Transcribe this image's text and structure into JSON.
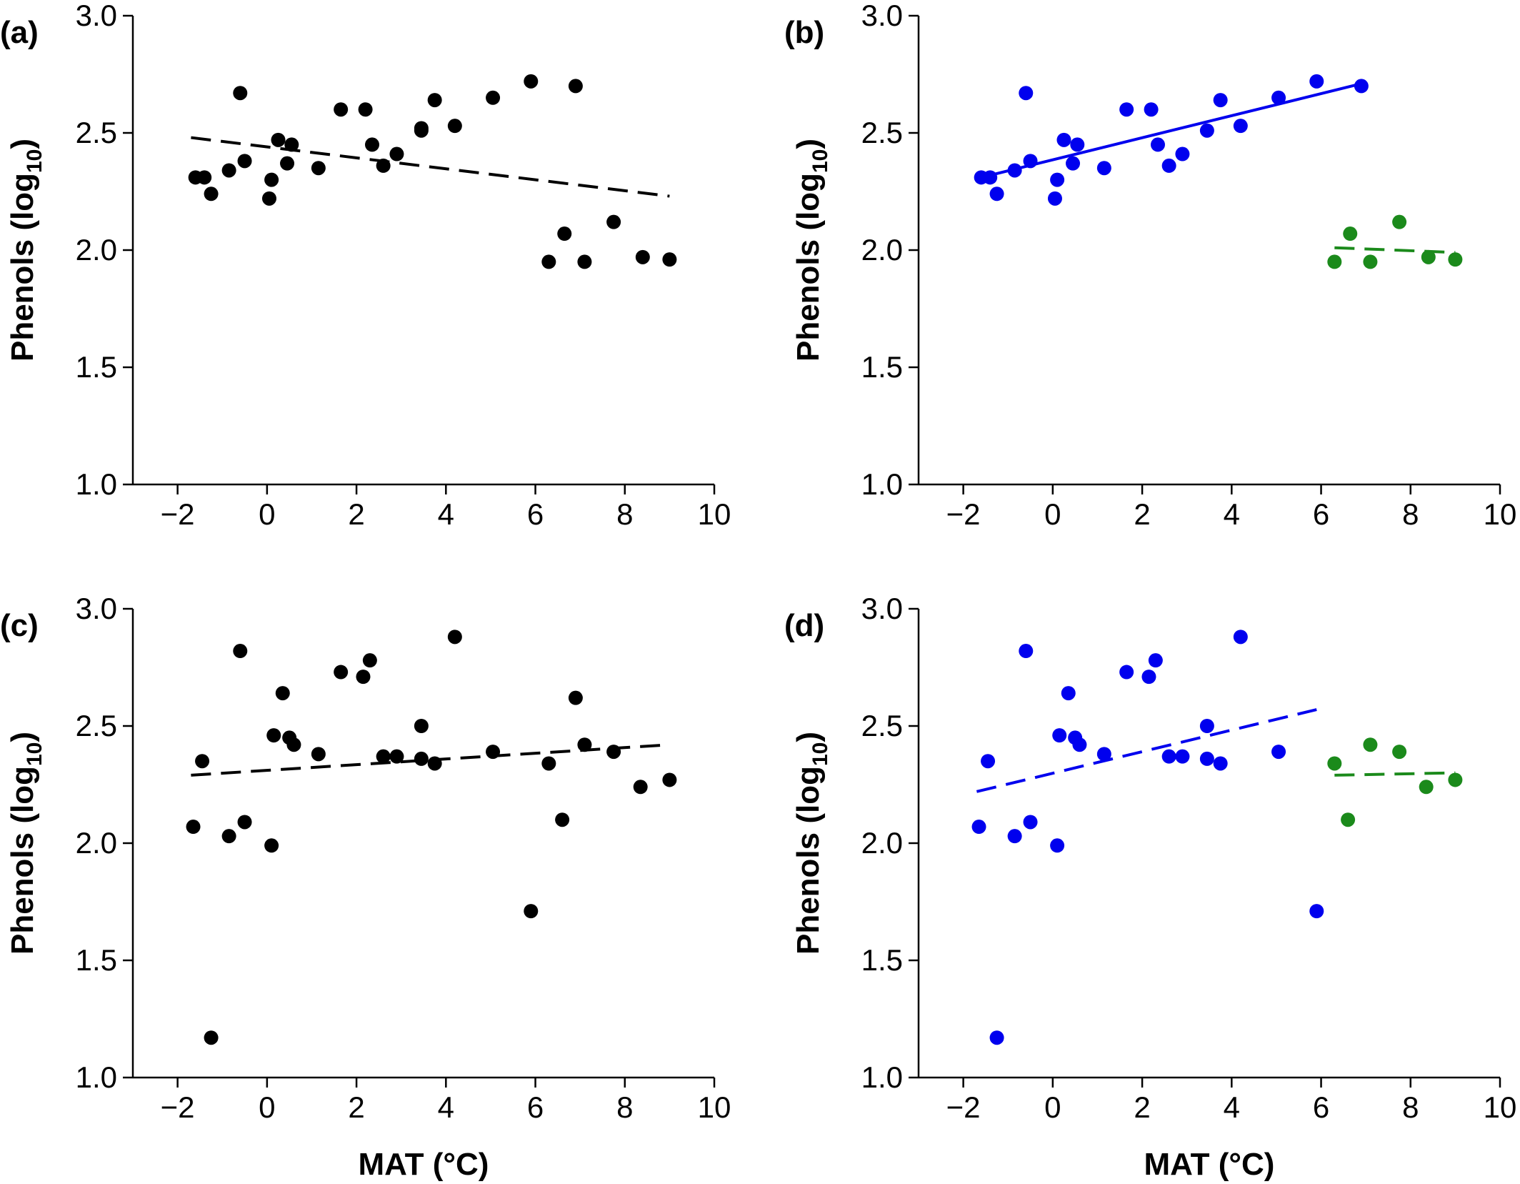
{
  "figure": {
    "axis_color": "#000000"
  },
  "chart_data": [
    {
      "panel": "(a)",
      "type": "scatter",
      "ylabel": "Phenols (log",
      "ylabel_sub": "10",
      "ylabel_end": ")",
      "xlabel": "",
      "xlim": [
        -3,
        10
      ],
      "ylim": [
        1.0,
        3.0
      ],
      "xticks": [
        -2,
        0,
        2,
        4,
        6,
        8,
        10
      ],
      "xtick_labels": [
        "−2",
        "0",
        "2",
        "4",
        "6",
        "8",
        "10"
      ],
      "yticks": [
        1.0,
        1.5,
        2.0,
        2.5,
        3.0
      ],
      "ytick_labels": [
        "1.0",
        "1.5",
        "2.0",
        "2.5",
        "3.0"
      ],
      "series": [
        {
          "color": "#000000",
          "points": [
            [
              -1.6,
              2.31
            ],
            [
              -1.4,
              2.31
            ],
            [
              -1.25,
              2.24
            ],
            [
              -0.85,
              2.34
            ],
            [
              -0.6,
              2.67
            ],
            [
              -0.5,
              2.38
            ],
            [
              0.05,
              2.22
            ],
            [
              0.1,
              2.3
            ],
            [
              0.25,
              2.47
            ],
            [
              0.45,
              2.37
            ],
            [
              0.55,
              2.45
            ],
            [
              1.15,
              2.35
            ],
            [
              1.65,
              2.6
            ],
            [
              2.2,
              2.6
            ],
            [
              2.35,
              2.45
            ],
            [
              2.6,
              2.36
            ],
            [
              2.9,
              2.41
            ],
            [
              3.45,
              2.51
            ],
            [
              3.45,
              2.52
            ],
            [
              3.75,
              2.64
            ],
            [
              4.2,
              2.53
            ],
            [
              5.05,
              2.65
            ],
            [
              5.9,
              2.72
            ],
            [
              6.3,
              1.95
            ],
            [
              6.65,
              2.07
            ],
            [
              6.9,
              2.7
            ],
            [
              7.1,
              1.95
            ],
            [
              7.75,
              2.12
            ],
            [
              8.4,
              1.97
            ],
            [
              9.0,
              1.96
            ]
          ],
          "fit": {
            "x": [
              -1.7,
              9.0
            ],
            "y": [
              2.48,
              2.23
            ],
            "style": "dashed"
          }
        }
      ]
    },
    {
      "panel": "(b)",
      "type": "scatter",
      "ylabel": "Phenols (log",
      "ylabel_sub": "10",
      "ylabel_end": ")",
      "xlabel": "",
      "xlim": [
        -3,
        10
      ],
      "ylim": [
        1.0,
        3.0
      ],
      "xticks": [
        -2,
        0,
        2,
        4,
        6,
        8,
        10
      ],
      "xtick_labels": [
        "−2",
        "0",
        "2",
        "4",
        "6",
        "8",
        "10"
      ],
      "yticks": [
        1.0,
        1.5,
        2.0,
        2.5,
        3.0
      ],
      "ytick_labels": [
        "1.0",
        "1.5",
        "2.0",
        "2.5",
        "3.0"
      ],
      "series": [
        {
          "color": "#0000ee",
          "points": [
            [
              -1.6,
              2.31
            ],
            [
              -1.4,
              2.31
            ],
            [
              -1.25,
              2.24
            ],
            [
              -0.85,
              2.34
            ],
            [
              -0.6,
              2.67
            ],
            [
              -0.5,
              2.38
            ],
            [
              0.05,
              2.22
            ],
            [
              0.1,
              2.3
            ],
            [
              0.25,
              2.47
            ],
            [
              0.45,
              2.37
            ],
            [
              0.55,
              2.45
            ],
            [
              1.15,
              2.35
            ],
            [
              1.65,
              2.6
            ],
            [
              2.2,
              2.6
            ],
            [
              2.35,
              2.45
            ],
            [
              2.6,
              2.36
            ],
            [
              2.9,
              2.41
            ],
            [
              3.45,
              2.51
            ],
            [
              3.75,
              2.64
            ],
            [
              4.2,
              2.53
            ],
            [
              5.05,
              2.65
            ],
            [
              5.9,
              2.72
            ],
            [
              6.9,
              2.7
            ]
          ],
          "fit": {
            "x": [
              -1.6,
              6.9
            ],
            "y": [
              2.31,
              2.71
            ],
            "style": "solid"
          }
        },
        {
          "color": "#1b8a1b",
          "points": [
            [
              6.3,
              1.95
            ],
            [
              6.65,
              2.07
            ],
            [
              7.1,
              1.95
            ],
            [
              7.75,
              2.12
            ],
            [
              8.4,
              1.97
            ],
            [
              9.0,
              1.96
            ]
          ],
          "fit": {
            "x": [
              6.3,
              9.0
            ],
            "y": [
              2.01,
              1.99
            ],
            "style": "dashed"
          }
        }
      ]
    },
    {
      "panel": "(c)",
      "type": "scatter",
      "ylabel": "Phenols (log",
      "ylabel_sub": "10",
      "ylabel_end": ")",
      "xlabel": "MAT (°C)",
      "xlim": [
        -3,
        10
      ],
      "ylim": [
        1.0,
        3.0
      ],
      "xticks": [
        -2,
        0,
        2,
        4,
        6,
        8,
        10
      ],
      "xtick_labels": [
        "−2",
        "0",
        "2",
        "4",
        "6",
        "8",
        "10"
      ],
      "yticks": [
        1.0,
        1.5,
        2.0,
        2.5,
        3.0
      ],
      "ytick_labels": [
        "1.0",
        "1.5",
        "2.0",
        "2.5",
        "3.0"
      ],
      "series": [
        {
          "color": "#000000",
          "points": [
            [
              -1.65,
              2.07
            ],
            [
              -1.45,
              2.35
            ],
            [
              -1.25,
              1.17
            ],
            [
              -0.85,
              2.03
            ],
            [
              -0.6,
              2.82
            ],
            [
              -0.5,
              2.09
            ],
            [
              0.1,
              1.99
            ],
            [
              0.15,
              2.46
            ],
            [
              0.35,
              2.64
            ],
            [
              0.5,
              2.45
            ],
            [
              0.6,
              2.42
            ],
            [
              1.15,
              2.38
            ],
            [
              1.65,
              2.73
            ],
            [
              2.15,
              2.71
            ],
            [
              2.3,
              2.78
            ],
            [
              2.6,
              2.37
            ],
            [
              2.9,
              2.37
            ],
            [
              3.45,
              2.5
            ],
            [
              3.45,
              2.36
            ],
            [
              3.75,
              2.34
            ],
            [
              4.2,
              2.88
            ],
            [
              5.05,
              2.39
            ],
            [
              5.9,
              1.71
            ],
            [
              6.3,
              2.34
            ],
            [
              6.6,
              2.1
            ],
            [
              6.9,
              2.62
            ],
            [
              7.1,
              2.42
            ],
            [
              7.75,
              2.39
            ],
            [
              8.35,
              2.24
            ],
            [
              9.0,
              2.27
            ]
          ],
          "fit": {
            "x": [
              -1.7,
              9.0
            ],
            "y": [
              2.29,
              2.42
            ],
            "style": "dashed"
          }
        }
      ]
    },
    {
      "panel": "(d)",
      "type": "scatter",
      "ylabel": "Phenols (log",
      "ylabel_sub": "10",
      "ylabel_end": ")",
      "xlabel": "MAT (°C)",
      "xlim": [
        -3,
        10
      ],
      "ylim": [
        1.0,
        3.0
      ],
      "xticks": [
        -2,
        0,
        2,
        4,
        6,
        8,
        10
      ],
      "xtick_labels": [
        "−2",
        "0",
        "2",
        "4",
        "6",
        "8",
        "10"
      ],
      "yticks": [
        1.0,
        1.5,
        2.0,
        2.5,
        3.0
      ],
      "ytick_labels": [
        "1.0",
        "1.5",
        "2.0",
        "2.5",
        "3.0"
      ],
      "series": [
        {
          "color": "#0000ee",
          "points": [
            [
              -1.65,
              2.07
            ],
            [
              -1.45,
              2.35
            ],
            [
              -1.25,
              1.17
            ],
            [
              -0.85,
              2.03
            ],
            [
              -0.6,
              2.82
            ],
            [
              -0.5,
              2.09
            ],
            [
              0.1,
              1.99
            ],
            [
              0.15,
              2.46
            ],
            [
              0.35,
              2.64
            ],
            [
              0.5,
              2.45
            ],
            [
              0.6,
              2.42
            ],
            [
              1.15,
              2.38
            ],
            [
              1.65,
              2.73
            ],
            [
              2.15,
              2.71
            ],
            [
              2.3,
              2.78
            ],
            [
              2.6,
              2.37
            ],
            [
              2.9,
              2.37
            ],
            [
              3.45,
              2.5
            ],
            [
              3.45,
              2.36
            ],
            [
              3.75,
              2.34
            ],
            [
              4.2,
              2.88
            ],
            [
              5.05,
              2.39
            ],
            [
              5.9,
              1.71
            ]
          ],
          "fit": {
            "x": [
              -1.7,
              5.9
            ],
            "y": [
              2.22,
              2.57
            ],
            "style": "dashed"
          }
        },
        {
          "color": "#1b8a1b",
          "points": [
            [
              6.3,
              2.34
            ],
            [
              6.6,
              2.1
            ],
            [
              7.1,
              2.42
            ],
            [
              7.75,
              2.39
            ],
            [
              8.35,
              2.24
            ],
            [
              9.0,
              2.27
            ]
          ],
          "fit": {
            "x": [
              6.3,
              9.0
            ],
            "y": [
              2.29,
              2.3
            ],
            "style": "dashed"
          }
        }
      ]
    }
  ]
}
